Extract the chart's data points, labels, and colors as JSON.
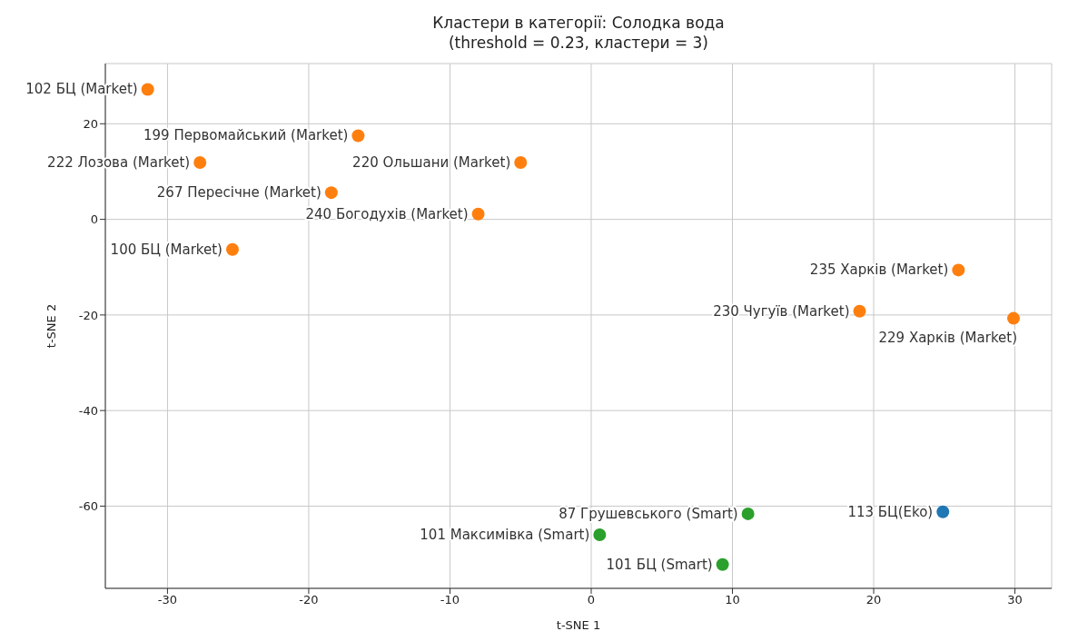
{
  "chart_data": {
    "type": "scatter",
    "title": "Кластери в категорії: Солодка вода",
    "subtitle": "(threshold = 0.23, кластери = 3)",
    "xlabel": "t-SNE 1",
    "ylabel": "t-SNE 2",
    "series": [
      {
        "color": "#1f77b4",
        "x": [
          24.9
        ],
        "values": [
          -61.2
        ]
      },
      {
        "color": "#ff7f0e",
        "x": [
          -31.4,
          -16.5,
          -27.7,
          -5.0,
          -18.4,
          -8.0,
          -25.4,
          26.0,
          19.0,
          29.9
        ],
        "values": [
          27.2,
          17.5,
          11.9,
          11.9,
          5.6,
          1.1,
          -6.3,
          -10.6,
          -19.2,
          -20.7
        ]
      },
      {
        "color": "#2ca02c",
        "x": [
          11.1,
          0.6,
          9.3
        ],
        "values": [
          -61.6,
          -66.0,
          -72.2
        ]
      }
    ],
    "annotations": [
      {
        "text": "102 БЦ (Market)",
        "x": -31.4,
        "y": 27.2
      },
      {
        "text": "199 Первомайський (Market)",
        "x": -16.5,
        "y": 17.5
      },
      {
        "text": "222 Лозова (Market)",
        "x": -27.7,
        "y": 11.9
      },
      {
        "text": "220 Ольшани (Market)",
        "x": -5.0,
        "y": 11.9
      },
      {
        "text": "267 Пересічне (Market)",
        "x": -18.4,
        "y": 5.6
      },
      {
        "text": "240 Богодухів (Market)",
        "x": -8.0,
        "y": 1.1
      },
      {
        "text": "100 БЦ (Market)",
        "x": -25.4,
        "y": -6.3
      },
      {
        "text": "235 Харків (Market)",
        "x": 26.0,
        "y": -10.6
      },
      {
        "text": "230 Чугуїв (Market)",
        "x": 19.0,
        "y": -19.2
      },
      {
        "text": "229 Харків (Market)",
        "x": 29.9,
        "y": -20.7
      },
      {
        "text": "87 Грушевського (Smart)",
        "x": 11.1,
        "y": -61.6
      },
      {
        "text": "101 Максимівка (Smart)",
        "x": 0.6,
        "y": -66.0
      },
      {
        "text": "101 БЦ (Smart)",
        "x": 9.3,
        "y": -72.2
      },
      {
        "text": "113 БЦ(Eko)",
        "x": 24.9,
        "y": -61.2
      }
    ],
    "xlim": [
      -34.4,
      32.6
    ],
    "ylim": [
      -77.2,
      32.6
    ],
    "xticks": [
      -30,
      -20,
      -10,
      0,
      10,
      20,
      30
    ],
    "yticks": [
      -60,
      -40,
      -20,
      0,
      20
    ],
    "grid": true,
    "marker": "circle"
  }
}
